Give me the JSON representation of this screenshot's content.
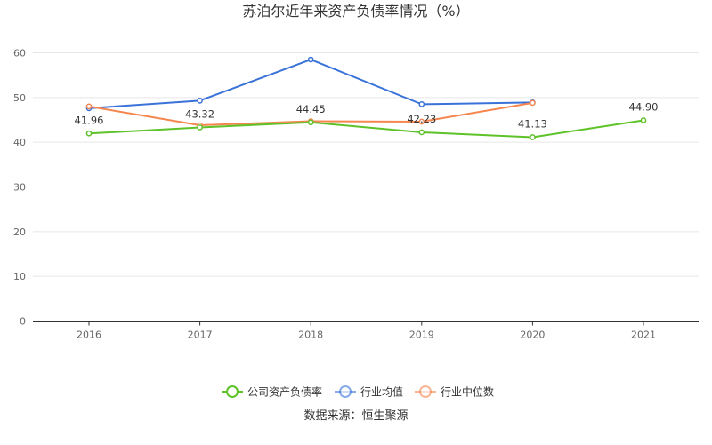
{
  "colors": {
    "company": "#5ec229",
    "industry_avg": "#3a72d9",
    "industry_median": "#f5864f",
    "grid": "#e6e6e6",
    "axis": "#333333"
  },
  "footer": {
    "source": "数据来源：恒生聚源"
  },
  "chart_data": {
    "type": "line",
    "title": "苏泊尔近年来资产负债率情况（%）",
    "categories": [
      "2016",
      "2017",
      "2018",
      "2019",
      "2020",
      "2021"
    ],
    "ylim": [
      0,
      60
    ],
    "yticks": [
      "0",
      "10",
      "20",
      "30",
      "40",
      "50",
      "60"
    ],
    "grid": true,
    "legend_position": "bottom",
    "series": [
      {
        "name": "公司资产负债率",
        "color": "#5ec229",
        "values": [
          41.96,
          43.32,
          44.45,
          42.23,
          41.13,
          44.9
        ],
        "labels": [
          "41.96",
          "43.32",
          "44.45",
          "42.23",
          "41.13",
          "44.90"
        ]
      },
      {
        "name": "行业均值",
        "color": "#3a72d9",
        "values": [
          47.6,
          49.3,
          58.5,
          48.5,
          48.9,
          null
        ]
      },
      {
        "name": "行业中位数",
        "color": "#f5864f",
        "values": [
          48.0,
          43.8,
          44.7,
          44.6,
          48.8,
          null
        ]
      }
    ]
  }
}
